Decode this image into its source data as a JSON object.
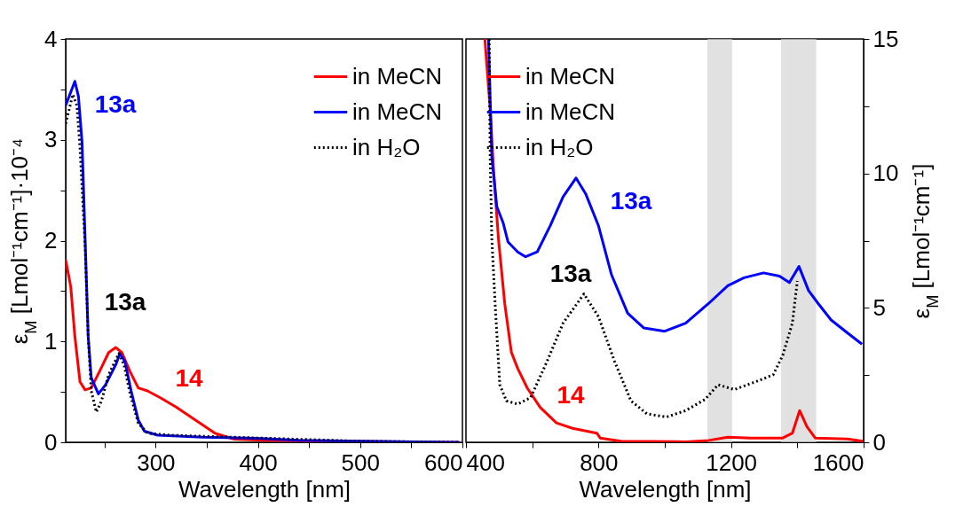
{
  "chart_data": [
    {
      "type": "line",
      "xlabel": "Wavelength [nm]",
      "ylabel": "ε$_{M}$ [Lmol⁻¹cm⁻¹]·10⁻⁴",
      "xlim": [
        212,
        600
      ],
      "xticks": [
        {
          "value": 250,
          "label": null
        },
        300,
        {
          "value": 350,
          "label": null
        },
        400,
        {
          "value": 450,
          "label": null
        },
        500,
        {
          "value": 550,
          "label": null
        },
        600
      ],
      "ylim": [
        0,
        4
      ],
      "yticks": [
        0,
        {
          "value": 0.5,
          "label": null
        },
        1,
        {
          "value": 1.5,
          "label": null
        },
        2,
        {
          "value": 2.5,
          "label": null
        },
        3,
        {
          "value": 3.5,
          "label": null
        },
        4
      ],
      "legend": "top right",
      "grid": false,
      "annotations": [
        "14",
        "13a",
        "13a"
      ],
      "series": [
        {
          "name": "in MeCN",
          "color": "#ff0000",
          "line_style": "solid",
          "x": [
            212,
            217,
            221,
            226,
            231,
            237,
            245,
            254,
            261,
            267,
            275,
            283,
            292,
            305,
            320,
            339,
            358,
            377,
            408,
            471,
            597
          ],
          "values": [
            1.81,
            1.54,
            1.05,
            0.6,
            0.52,
            0.54,
            0.7,
            0.89,
            0.94,
            0.89,
            0.7,
            0.54,
            0.51,
            0.44,
            0.35,
            0.22,
            0.09,
            0.03,
            0.02,
            0.01,
            0
          ]
        },
        {
          "name": "in MeCN",
          "color": "#0000ff",
          "line_style": "solid",
          "x": [
            212,
            221,
            224.5,
            228,
            231,
            234,
            237,
            244,
            251,
            261,
            265,
            270,
            276,
            283,
            289,
            302,
            346,
            399,
            440,
            503,
            597
          ],
          "values": [
            3.34,
            3.58,
            3.43,
            2.98,
            2.02,
            1.05,
            0.64,
            0.48,
            0.57,
            0.77,
            0.88,
            0.8,
            0.51,
            0.22,
            0.11,
            0.07,
            0.05,
            0.04,
            0.02,
            0.01,
            0
          ]
        },
        {
          "name": "in H₂O",
          "color": "#000000",
          "line_style": "dotted",
          "x": [
            212,
            219,
            223,
            226,
            231,
            234,
            237,
            242,
            247,
            254,
            264,
            269,
            275,
            283,
            292,
            314,
            377,
            440,
            503,
            597
          ],
          "values": [
            3.16,
            3.45,
            3.34,
            2.92,
            1.95,
            1.05,
            0.51,
            0.3,
            0.41,
            0.67,
            0.88,
            0.77,
            0.48,
            0.19,
            0.09,
            0.07,
            0.05,
            0.03,
            0.01,
            0
          ]
        }
      ]
    },
    {
      "type": "line",
      "xlabel": "Wavelength [nm]",
      "y2label": "ε$_{M}$ [Lmol⁻¹cm⁻¹]",
      "xlim": [
        400,
        1600
      ],
      "xticks": [
        400,
        {
          "value": 600,
          "label": null
        },
        800,
        {
          "value": 1000,
          "label": null
        },
        1200,
        {
          "value": 1400,
          "label": null
        },
        1600
      ],
      "y2lim": [
        0,
        15
      ],
      "y2ticks": [
        0,
        {
          "value": 2.5,
          "label": null
        },
        5,
        {
          "value": 7.5,
          "label": null
        },
        10,
        {
          "value": 12.5,
          "label": null
        },
        15
      ],
      "legend": "top left",
      "grid": false,
      "bands": [
        {
          "axis": "x",
          "from": 1129,
          "to": 1203,
          "color": "#d4d4d4"
        },
        {
          "axis": "x",
          "from": 1351,
          "to": 1457,
          "color": "#d4d4d4"
        }
      ],
      "annotations": [
        "14",
        "13a",
        "13a"
      ],
      "series": [
        {
          "name": "in MeCN",
          "color": "#ff0000",
          "line_style": "solid",
          "axis": "y2",
          "x": [
            457,
            473,
            483,
            498,
            517,
            537,
            556,
            585,
            624,
            673,
            722,
            795,
            805,
            868,
            1063,
            1132,
            1190,
            1259,
            1356,
            1385,
            1407,
            1429,
            1454,
            1551,
            1598
          ],
          "values": [
            15,
            12.4,
            10.2,
            7.57,
            5.16,
            3.35,
            2.75,
            2.02,
            1.3,
            0.72,
            0.52,
            0.34,
            0.16,
            0.04,
            0.02,
            0.07,
            0.19,
            0.16,
            0.16,
            0.34,
            1.18,
            0.58,
            0.16,
            0.12,
            0.04
          ]
        },
        {
          "name": "in MeCN",
          "color": "#0000ff",
          "line_style": "solid",
          "axis": "y2",
          "x": [
            468,
            478,
            493,
            512,
            527,
            556,
            580,
            615,
            654,
            693,
            732,
            761,
            800,
            839,
            888,
            937,
            1000,
            1063,
            1132,
            1190,
            1239,
            1298,
            1346,
            1376,
            1405,
            1434,
            1463,
            1502,
            1551,
            1595
          ],
          "values": [
            15,
            10.6,
            8.77,
            8.17,
            7.45,
            7.08,
            6.9,
            7.08,
            8.05,
            9.13,
            9.83,
            9.25,
            8.05,
            6.24,
            4.8,
            4.25,
            4.13,
            4.43,
            5.16,
            5.82,
            6.12,
            6.3,
            6.18,
            5.94,
            6.54,
            5.64,
            5.16,
            4.55,
            4.07,
            3.65
          ]
        },
        {
          "name": "in H₂O",
          "color": "#000000",
          "line_style": "dotted",
          "axis": "y2",
          "x": [
            470,
            473,
            478,
            488,
            502,
            522,
            556,
            595,
            644,
            693,
            756,
            800,
            849,
            898,
            946,
            1005,
            1063,
            1122,
            1161,
            1210,
            1278,
            1327,
            1356,
            1385,
            1400
          ],
          "values": [
            15,
            10.6,
            7.57,
            5.16,
            2.14,
            1.54,
            1.42,
            1.66,
            2.99,
            4.43,
            5.52,
            4.67,
            2.99,
            1.54,
            1.06,
            0.94,
            1.18,
            1.6,
            2.14,
            1.96,
            2.27,
            2.51,
            3.23,
            4.43,
            6.0
          ]
        }
      ]
    }
  ]
}
